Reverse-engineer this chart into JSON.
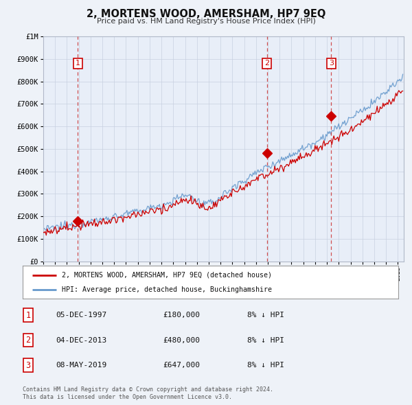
{
  "title": "2, MORTENS WOOD, AMERSHAM, HP7 9EQ",
  "subtitle": "Price paid vs. HM Land Registry's House Price Index (HPI)",
  "bg_color": "#eef2f8",
  "plot_bg_color": "#e8eef8",
  "sale_color": "#cc0000",
  "hpi_color": "#6699cc",
  "vline_color": "#cc3333",
  "legend_sale": "2, MORTENS WOOD, AMERSHAM, HP7 9EQ (detached house)",
  "legend_hpi": "HPI: Average price, detached house, Buckinghamshire",
  "sale_dates_year": [
    1997.92,
    2013.92,
    2019.36
  ],
  "sale_prices": [
    180000,
    480000,
    647000
  ],
  "sale_labels": [
    "1",
    "2",
    "3"
  ],
  "table_entries": [
    {
      "num": "1",
      "date": "05-DEC-1997",
      "price": "£180,000",
      "note": "8% ↓ HPI"
    },
    {
      "num": "2",
      "date": "04-DEC-2013",
      "price": "£480,000",
      "note": "8% ↓ HPI"
    },
    {
      "num": "3",
      "date": "08-MAY-2019",
      "price": "£647,000",
      "note": "8% ↓ HPI"
    }
  ],
  "footnote1": "Contains HM Land Registry data © Crown copyright and database right 2024.",
  "footnote2": "This data is licensed under the Open Government Licence v3.0.",
  "ylim": [
    0,
    1000000
  ],
  "xlim_start": 1995.0,
  "xlim_end": 2025.5
}
